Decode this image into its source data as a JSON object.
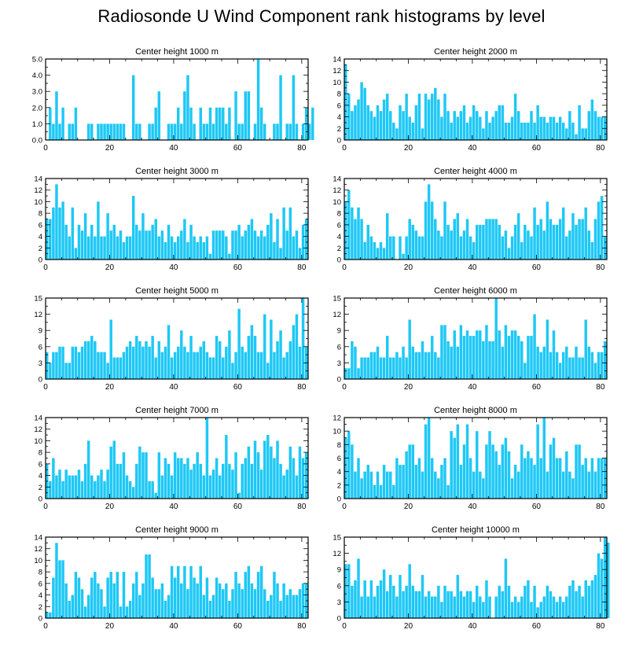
{
  "figure": {
    "title": "Radiosonde U Wind Component rank histograms by level",
    "bar_color": "#1ec8f5"
  },
  "chart_data": [
    {
      "type": "bar",
      "title": "Center height 1000 m",
      "xlabel": "",
      "ylabel": "",
      "xlim": [
        0,
        82
      ],
      "ylim": [
        0,
        5
      ],
      "xticks": [
        0,
        20,
        40,
        60,
        80
      ],
      "yticks": [
        0,
        1,
        2,
        3,
        4,
        5
      ],
      "ytick_labels": [
        "0.0",
        "1.0",
        "2.0",
        "3.0",
        "4.0",
        "5.0"
      ],
      "values": [
        0,
        2,
        1,
        3,
        1,
        2,
        0,
        1,
        1,
        2,
        0,
        0,
        0,
        1,
        1,
        0,
        1,
        1,
        1,
        1,
        1,
        1,
        1,
        1,
        1,
        0,
        0,
        4,
        1,
        1,
        0,
        0,
        1,
        1,
        2,
        3,
        0,
        0,
        1,
        1,
        1,
        2,
        1,
        3,
        4,
        2,
        1,
        0,
        2,
        1,
        1,
        2,
        1,
        2,
        2,
        2,
        1,
        2,
        0,
        3,
        1,
        1,
        3,
        3,
        0,
        1,
        5,
        2,
        1,
        0,
        0,
        1,
        1,
        4,
        0,
        1,
        1,
        4,
        1,
        0,
        1,
        2,
        1,
        2
      ]
    },
    {
      "type": "bar",
      "title": "Center height 2000 m",
      "xlabel": "",
      "ylabel": "",
      "xlim": [
        0,
        82
      ],
      "ylim": [
        0,
        14
      ],
      "xticks": [
        0,
        20,
        40,
        60,
        80
      ],
      "yticks": [
        0,
        2,
        4,
        6,
        8,
        10,
        12,
        14
      ],
      "values": [
        13,
        8,
        5,
        6,
        7,
        10,
        9,
        6,
        5,
        4,
        6,
        5,
        7,
        8,
        5,
        3,
        2,
        6,
        5,
        8,
        4,
        3,
        6,
        8,
        2,
        8,
        7,
        8,
        9,
        7,
        4,
        8,
        5,
        3,
        5,
        4,
        5,
        6,
        3,
        4,
        6,
        5,
        4,
        2,
        5,
        3,
        4,
        5,
        6,
        6,
        3,
        3,
        4,
        8,
        5,
        3,
        3,
        3,
        5,
        3,
        6,
        4,
        4,
        3,
        4,
        4,
        3,
        4,
        3,
        2,
        5,
        3,
        1,
        6,
        2,
        2,
        5,
        7,
        5,
        4,
        4,
        4
      ]
    },
    {
      "type": "bar",
      "title": "Center height 3000 m",
      "xlabel": "",
      "ylabel": "",
      "xlim": [
        0,
        82
      ],
      "ylim": [
        0,
        14
      ],
      "xticks": [
        0,
        20,
        40,
        60,
        80
      ],
      "yticks": [
        0,
        2,
        4,
        6,
        8,
        10,
        12,
        14
      ],
      "values": [
        7,
        7,
        9,
        13,
        9,
        10,
        6,
        4,
        9,
        2,
        6,
        5,
        8,
        4,
        6,
        4,
        10,
        4,
        4,
        8,
        5,
        6,
        4,
        5,
        3,
        4,
        4,
        11,
        6,
        5,
        8,
        5,
        5,
        6,
        7,
        4,
        5,
        3,
        6,
        4,
        3,
        4,
        5,
        7,
        3,
        6,
        4,
        3,
        4,
        3,
        4,
        1,
        5,
        5,
        5,
        5,
        4,
        1,
        5,
        5,
        6,
        4,
        5,
        6,
        7,
        5,
        4,
        5,
        4,
        6,
        8,
        3,
        7,
        2,
        9,
        5,
        9,
        4,
        5,
        2,
        6,
        7
      ]
    },
    {
      "type": "bar",
      "title": "Center height 4000 m",
      "xlabel": "",
      "ylabel": "",
      "xlim": [
        0,
        82
      ],
      "ylim": [
        0,
        14
      ],
      "xticks": [
        0,
        20,
        40,
        60,
        80
      ],
      "yticks": [
        0,
        2,
        4,
        6,
        8,
        10,
        12,
        14
      ],
      "values": [
        10,
        12,
        9,
        7,
        9,
        7,
        3,
        6,
        4,
        3,
        2,
        3,
        2,
        8,
        4,
        4,
        0,
        4,
        1,
        4,
        7,
        6,
        5,
        4,
        4,
        10,
        13,
        10,
        7,
        5,
        4,
        10,
        6,
        5,
        7,
        8,
        4,
        5,
        7,
        4,
        3,
        6,
        6,
        6,
        7,
        7,
        7,
        7,
        6,
        4,
        5,
        2,
        4,
        6,
        8,
        3,
        6,
        5,
        4,
        9,
        6,
        7,
        5,
        10,
        7,
        6,
        6,
        7,
        9,
        4,
        5,
        8,
        6,
        7,
        7,
        9,
        5,
        3,
        7,
        10,
        11,
        4
      ]
    },
    {
      "type": "bar",
      "title": "Center height 5000 m",
      "xlabel": "",
      "ylabel": "",
      "xlim": [
        0,
        82
      ],
      "ylim": [
        0,
        15
      ],
      "xticks": [
        0,
        20,
        40,
        60,
        80
      ],
      "yticks": [
        0,
        3,
        6,
        9,
        12,
        15
      ],
      "values": [
        5,
        3,
        5,
        5,
        6,
        6,
        3,
        3,
        6,
        6,
        5,
        6,
        7,
        7,
        8,
        7,
        5,
        5,
        5,
        3,
        11,
        4,
        4,
        4,
        5,
        6,
        7,
        6,
        8,
        7,
        6,
        7,
        6,
        8,
        4,
        7,
        5,
        6,
        10,
        4,
        5,
        6,
        9,
        6,
        5,
        8,
        5,
        5,
        6,
        7,
        5,
        4,
        4,
        8,
        7,
        4,
        6,
        9,
        3,
        5,
        13,
        6,
        5,
        8,
        10,
        8,
        5,
        5,
        12,
        3,
        11,
        5,
        7,
        9,
        4,
        5,
        7,
        10,
        12,
        6,
        15,
        6
      ]
    },
    {
      "type": "bar",
      "title": "Center height 6000 m",
      "xlabel": "",
      "ylabel": "",
      "xlim": [
        0,
        82
      ],
      "ylim": [
        0,
        15
      ],
      "xticks": [
        0,
        20,
        40,
        60,
        80
      ],
      "yticks": [
        0,
        3,
        6,
        9,
        12,
        15
      ],
      "values": [
        2,
        2,
        7,
        6,
        2,
        4,
        4,
        4,
        5,
        5,
        6,
        4,
        4,
        8,
        4,
        4,
        5,
        4,
        6,
        4,
        11,
        6,
        5,
        5,
        7,
        5,
        5,
        8,
        5,
        4,
        10,
        10,
        7,
        6,
        9,
        6,
        10,
        8,
        9,
        8,
        8,
        9,
        9,
        7,
        10,
        7,
        7,
        15,
        9,
        6,
        10,
        8,
        9,
        9,
        8,
        7,
        3,
        8,
        8,
        12,
        6,
        5,
        6,
        11,
        5,
        9,
        5,
        3,
        5,
        6,
        4,
        4,
        6,
        4,
        4,
        11,
        6,
        5,
        3,
        5,
        5,
        7
      ]
    },
    {
      "type": "bar",
      "title": "Center height 7000 m",
      "xlabel": "",
      "ylabel": "",
      "xlim": [
        0,
        82
      ],
      "ylim": [
        0,
        14
      ],
      "xticks": [
        0,
        20,
        40,
        60,
        80
      ],
      "yticks": [
        0,
        2,
        4,
        6,
        8,
        10,
        12,
        14
      ],
      "values": [
        6,
        3,
        7,
        4,
        5,
        3,
        5,
        4,
        4,
        4,
        5,
        3,
        6,
        10,
        4,
        3,
        4,
        5,
        3,
        5,
        9,
        10,
        6,
        6,
        8,
        4,
        3,
        2,
        6,
        9,
        8,
        8,
        3,
        3,
        1,
        8,
        4,
        7,
        6,
        4,
        8,
        7,
        7,
        6,
        7,
        5,
        6,
        8,
        6,
        4,
        14,
        4,
        5,
        7,
        4,
        6,
        11,
        6,
        5,
        8,
        1,
        6,
        7,
        9,
        6,
        10,
        8,
        5,
        10,
        11,
        9,
        7,
        10,
        6,
        4,
        5,
        9,
        7,
        4,
        9,
        7,
        8
      ]
    },
    {
      "type": "bar",
      "title": "Center height 8000 m",
      "xlabel": "",
      "ylabel": "",
      "xlim": [
        0,
        82
      ],
      "ylim": [
        0,
        12
      ],
      "xticks": [
        0,
        20,
        40,
        60,
        80
      ],
      "yticks": [
        0,
        2,
        4,
        6,
        8,
        10,
        12
      ],
      "values": [
        9,
        10,
        8,
        4,
        6,
        3,
        4,
        5,
        4,
        2,
        4,
        2,
        5,
        4,
        4,
        2,
        6,
        5,
        5,
        7,
        8,
        8,
        5,
        6,
        4,
        11,
        12,
        6,
        4,
        3,
        5,
        6,
        2,
        10,
        9,
        11,
        5,
        8,
        11,
        6,
        4,
        10,
        4,
        3,
        8,
        10,
        8,
        7,
        5,
        8,
        9,
        7,
        3,
        5,
        4,
        8,
        6,
        7,
        6,
        5,
        11,
        6,
        12,
        4,
        8,
        9,
        6,
        6,
        4,
        7,
        4,
        3,
        8,
        8,
        5,
        6,
        4,
        6,
        4,
        6,
        6,
        6
      ]
    },
    {
      "type": "bar",
      "title": "Center height 9000 m",
      "xlabel": "",
      "ylabel": "",
      "xlim": [
        0,
        82
      ],
      "ylim": [
        0,
        14
      ],
      "xticks": [
        0,
        20,
        40,
        60,
        80
      ],
      "yticks": [
        0,
        2,
        4,
        6,
        8,
        10,
        12,
        14
      ],
      "values": [
        1,
        1,
        7,
        13,
        10,
        10,
        6,
        3,
        4,
        8,
        7,
        5,
        2,
        4,
        7,
        8,
        6,
        5,
        2,
        7,
        8,
        6,
        8,
        2,
        8,
        2,
        3,
        6,
        8,
        4,
        6,
        11,
        11,
        7,
        5,
        5,
        6,
        3,
        4,
        9,
        7,
        9,
        6,
        9,
        5,
        9,
        7,
        6,
        9,
        4,
        7,
        3,
        4,
        7,
        6,
        5,
        6,
        3,
        5,
        8,
        6,
        5,
        8,
        9,
        6,
        5,
        8,
        9,
        5,
        3,
        4,
        8,
        6,
        3,
        6,
        4,
        5,
        4,
        4,
        5,
        6,
        6
      ]
    },
    {
      "type": "bar",
      "title": "Center height 10000 m",
      "xlabel": "",
      "ylabel": "",
      "xlim": [
        0,
        82
      ],
      "ylim": [
        0,
        15
      ],
      "xticks": [
        0,
        20,
        40,
        60,
        80
      ],
      "yticks": [
        0,
        3,
        6,
        9,
        12,
        15
      ],
      "values": [
        10,
        10,
        6,
        7,
        11,
        4,
        7,
        4,
        7,
        4,
        6,
        7,
        9,
        5,
        8,
        6,
        4,
        8,
        5,
        6,
        10,
        6,
        5,
        5,
        8,
        4,
        5,
        4,
        4,
        6,
        3,
        6,
        5,
        5,
        4,
        8,
        5,
        4,
        5,
        5,
        3,
        6,
        4,
        3,
        7,
        4,
        0,
        4,
        6,
        5,
        11,
        6,
        3,
        4,
        3,
        4,
        6,
        7,
        3,
        6,
        2,
        3,
        4,
        6,
        5,
        4,
        3,
        4,
        3,
        4,
        6,
        7,
        5,
        6,
        4,
        7,
        6,
        7,
        8,
        12,
        11,
        15,
        14
      ]
    }
  ]
}
